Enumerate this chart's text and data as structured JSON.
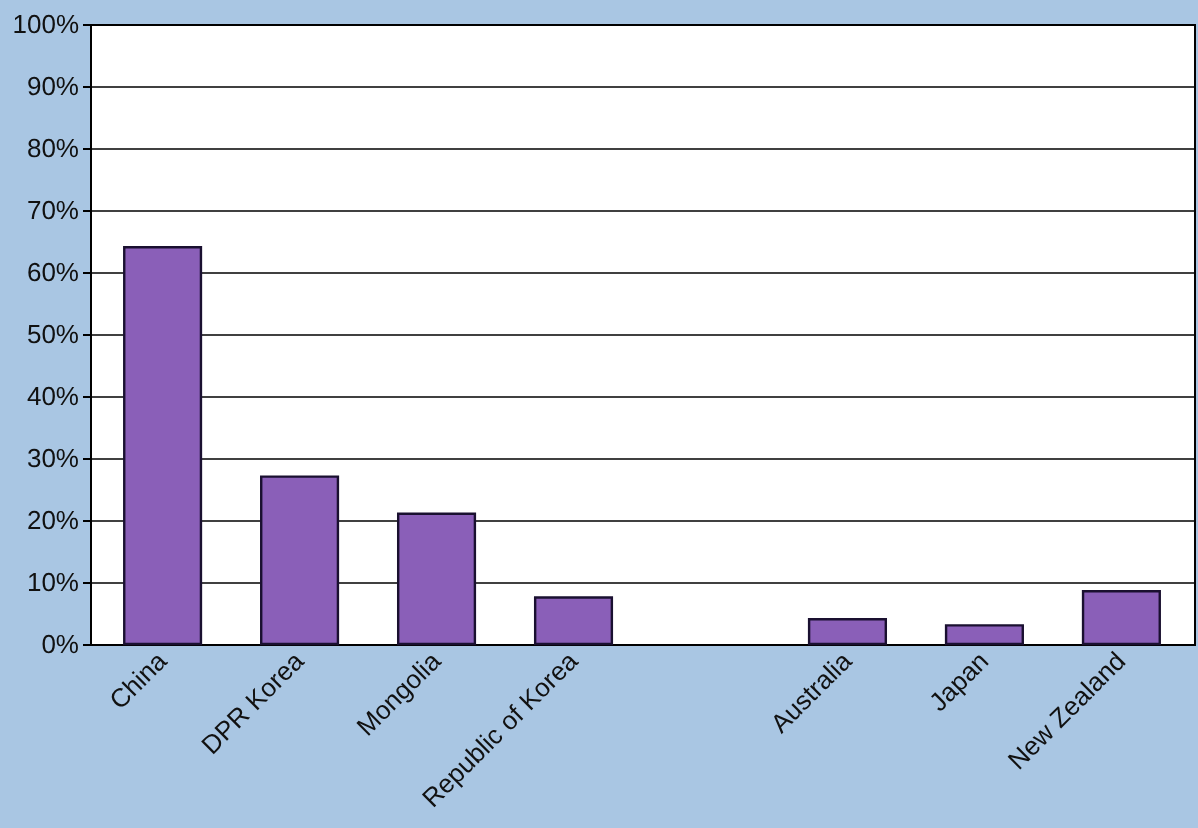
{
  "chart_data": {
    "type": "bar",
    "categories": [
      "China",
      "DPR Korea",
      "Mongolia",
      "Republic of Korea",
      null,
      "Australia",
      "Japan",
      "New Zealand"
    ],
    "values": [
      64,
      27,
      21,
      7.5,
      null,
      4,
      3,
      8.5
    ],
    "color": "#8a5fb8",
    "ylim": [
      0,
      100
    ],
    "yticks": [
      {
        "value": 0,
        "label": "0%"
      },
      {
        "value": 10,
        "label": "10%"
      },
      {
        "value": 20,
        "label": "20%"
      },
      {
        "value": 30,
        "label": "30%"
      },
      {
        "value": 40,
        "label": "40%"
      },
      {
        "value": 50,
        "label": "50%"
      },
      {
        "value": 60,
        "label": "60%"
      },
      {
        "value": 70,
        "label": "70%"
      },
      {
        "value": 80,
        "label": "80%"
      },
      {
        "value": 90,
        "label": "90%"
      },
      {
        "value": 100,
        "label": "100%"
      }
    ],
    "grid": "y"
  }
}
